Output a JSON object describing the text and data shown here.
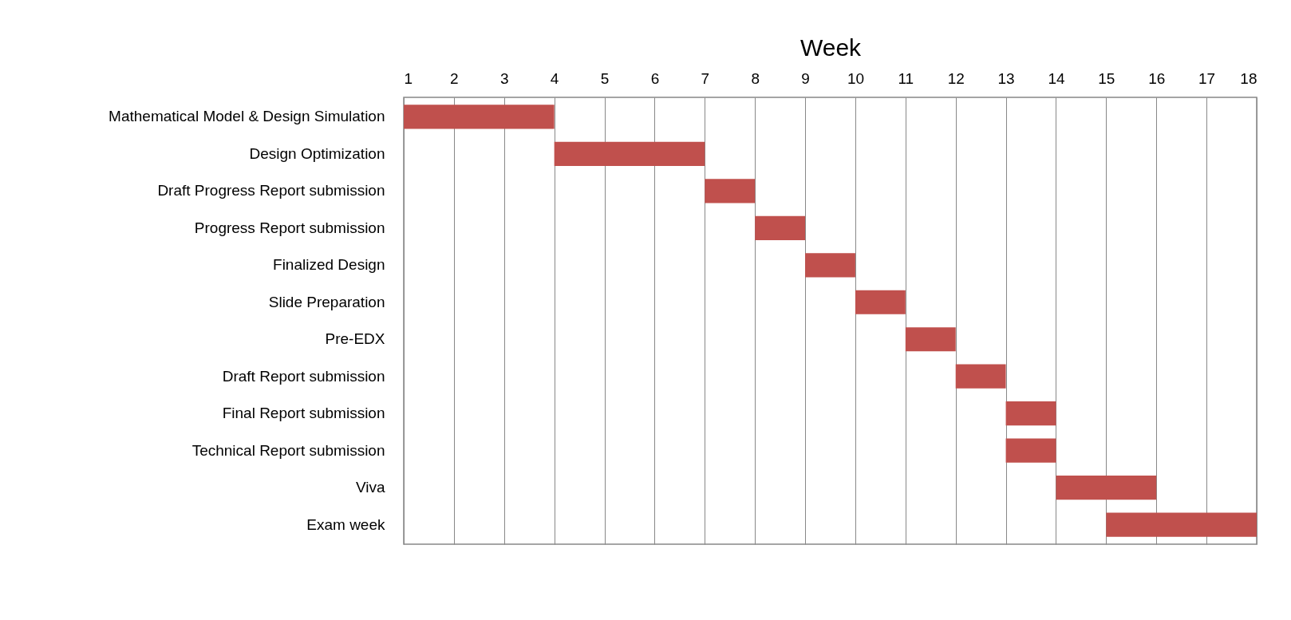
{
  "chart_data": {
    "type": "bar",
    "orientation": "horizontal",
    "xlabel": "Week",
    "categories": [
      "Mathematical Model & Design Simulation",
      "Design Optimization",
      "Draft Progress Report submission",
      "Progress Report submission",
      "Finalized Design",
      "Slide Preparation",
      "Pre-EDX",
      "Draft Report submission",
      "Final Report submission",
      "Technical Report submission",
      "Viva",
      "Exam week"
    ],
    "base": [
      1,
      4,
      7,
      8,
      9,
      10,
      11,
      12,
      13,
      13,
      14,
      15
    ],
    "values": [
      3,
      3,
      1,
      1,
      1,
      1,
      1,
      1,
      1,
      1,
      2,
      3
    ],
    "color": "#c0504d",
    "xlim": [
      1,
      18
    ],
    "xticks": [
      1,
      2,
      3,
      4,
      5,
      6,
      7,
      8,
      9,
      10,
      11,
      12,
      13,
      14,
      15,
      16,
      17,
      18
    ],
    "grid": "x"
  }
}
